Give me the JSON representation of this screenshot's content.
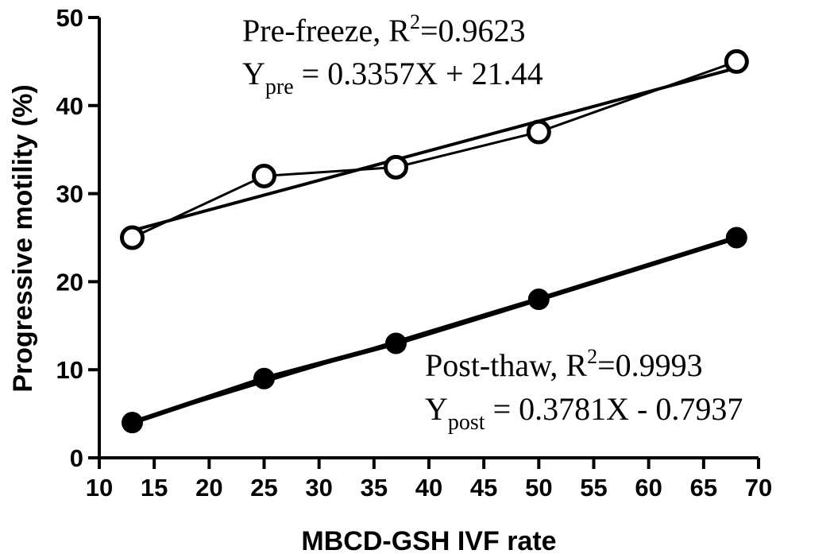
{
  "chart_data": {
    "type": "line",
    "xlabel": "MBCD-GSH IVF rate",
    "ylabel": "Progressive motility (%)",
    "xlim": [
      10,
      70
    ],
    "ylim": [
      0,
      50
    ],
    "xticks": [
      10,
      15,
      20,
      25,
      30,
      35,
      40,
      45,
      50,
      55,
      60,
      65,
      70
    ],
    "yticks": [
      0,
      10,
      20,
      30,
      40,
      50
    ],
    "grid": false,
    "series": [
      {
        "marker": "open-circle",
        "x": [
          13,
          25,
          37,
          50,
          68
        ],
        "y": [
          25,
          32,
          33,
          37,
          45
        ],
        "fit": {
          "slope": 0.3357,
          "intercept": 21.44
        }
      },
      {
        "marker": "filled-circle",
        "x": [
          13,
          25,
          37,
          50,
          68
        ],
        "y": [
          4,
          9,
          13,
          18,
          25
        ],
        "fit": {
          "slope": 0.3781,
          "intercept": -0.7937
        }
      }
    ],
    "annotations": [
      {
        "line1_text": "Pre-freeze, R",
        "line1_sup": "2",
        "line1_value": "=0.9623",
        "line2_y": "Y",
        "line2_sub": "pre",
        "line2_eq": " = 0.3357X + 21.44"
      },
      {
        "line1_text": "Post-thaw, R",
        "line1_sup": "2",
        "line1_value": "=0.9993",
        "line2_y": "Y",
        "line2_sub": "post",
        "line2_eq": " = 0.3781X - 0.7937"
      }
    ]
  }
}
